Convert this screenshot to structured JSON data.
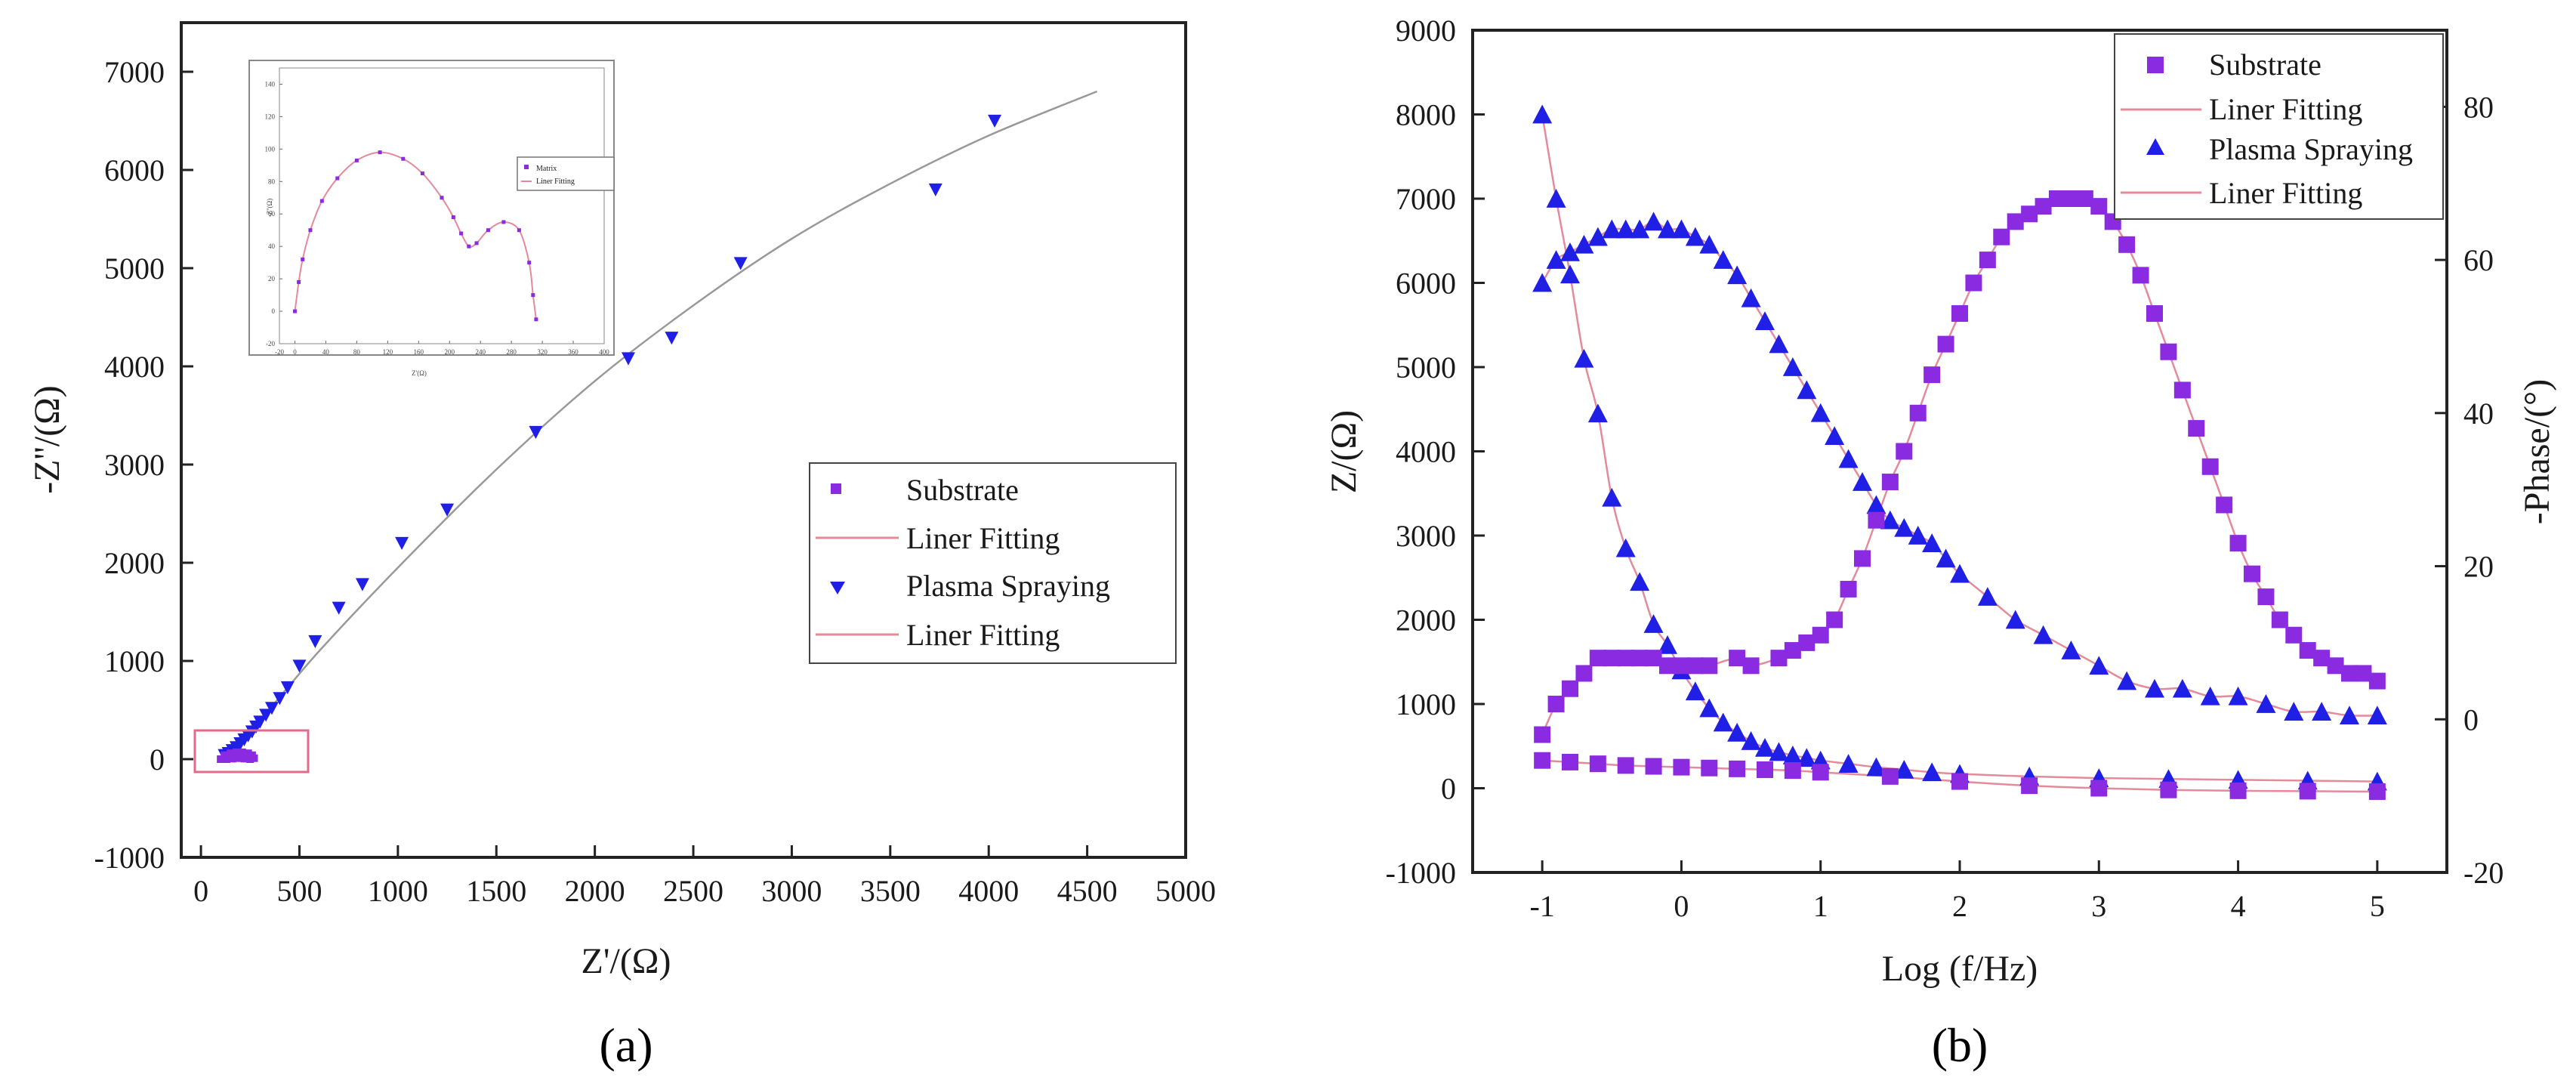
{
  "chart_data": [
    {
      "id": "a",
      "type": "scatter",
      "panel_label": "(a)",
      "xlabel": "Z'/(Ω)",
      "ylabel": "-Z''/(Ω)",
      "xlim": [
        -100,
        5000
      ],
      "ylim": [
        -1000,
        7500
      ],
      "xticks": [
        0,
        500,
        1000,
        1500,
        2000,
        2500,
        3000,
        3500,
        4000,
        4500,
        5000
      ],
      "yticks": [
        -1000,
        0,
        1000,
        2000,
        3000,
        4000,
        5000,
        6000,
        7000
      ],
      "legend": [
        "Substrate",
        "Liner Fitting",
        "Plasma Spraying",
        "Liner Fitting"
      ],
      "series": [
        {
          "name": "Plasma Spraying",
          "marker": "triangle-down",
          "color": "#1f1fe6",
          "x": [
            120,
            140,
            160,
            180,
            200,
            220,
            240,
            260,
            280,
            300,
            330,
            360,
            400,
            440,
            500,
            580,
            700,
            820,
            1020,
            1250,
            1700,
            2170,
            2390,
            2740,
            3730,
            4030
          ],
          "y": [
            40,
            60,
            90,
            120,
            160,
            200,
            240,
            280,
            330,
            380,
            450,
            520,
            620,
            730,
            950,
            1200,
            1540,
            1780,
            2200,
            2540,
            3330,
            4080,
            4290,
            5050,
            5800,
            6500
          ]
        },
        {
          "name": "Substrate",
          "marker": "square",
          "color": "#8a2be2",
          "x": [
            100,
            120,
            150,
            180,
            210,
            240,
            260,
            270,
            250,
            220,
            190,
            160,
            130
          ],
          "y": [
            0,
            40,
            60,
            70,
            70,
            60,
            40,
            10,
            0,
            5,
            10,
            5,
            0
          ]
        },
        {
          "name": "Liner Fitting",
          "type": "line",
          "color": "#999999",
          "x": [
            100,
            300,
            600,
            1000,
            1500,
            2000,
            2500,
            3000,
            3500,
            4000,
            4550
          ],
          "y": [
            0,
            400,
            1100,
            1950,
            2950,
            3850,
            4620,
            5300,
            5860,
            6350,
            6800
          ]
        }
      ],
      "inset": {
        "xlabel": "Z'(Ω)",
        "ylabel": "-Z''(Ω)",
        "xlim": [
          -20,
          400
        ],
        "ylim": [
          -20,
          150
        ],
        "xticks": [
          -20,
          0,
          40,
          80,
          120,
          160,
          200,
          240,
          280,
          320,
          360,
          400
        ],
        "yticks": [
          -20,
          0,
          20,
          40,
          60,
          80,
          100,
          120,
          140
        ],
        "legend": [
          "Matrix",
          "Liner Fitting"
        ],
        "x": [
          0,
          5,
          10,
          20,
          35,
          55,
          80,
          110,
          140,
          165,
          190,
          205,
          215,
          225,
          235,
          250,
          270,
          290,
          303,
          308,
          312
        ],
        "y": [
          0,
          18,
          32,
          50,
          68,
          82,
          93,
          98,
          94,
          85,
          70,
          58,
          48,
          40,
          42,
          50,
          55,
          50,
          30,
          10,
          -5
        ]
      }
    },
    {
      "id": "b",
      "type": "scatter",
      "panel_label": "(b)",
      "xlabel": "Log (f/Hz)",
      "ylabel": "Z/(Ω)",
      "y2label": "-Phase/(°)",
      "xlim": [
        -1.5,
        5.5
      ],
      "ylim": [
        -1000,
        9000
      ],
      "y2lim": [
        -20,
        90
      ],
      "xticks": [
        -1,
        0,
        1,
        2,
        3,
        4,
        5
      ],
      "yticks": [
        -1000,
        0,
        1000,
        2000,
        3000,
        4000,
        5000,
        6000,
        7000,
        8000,
        9000
      ],
      "y2ticks": [
        -20,
        0,
        20,
        40,
        60,
        80
      ],
      "legend": [
        "Substrate",
        "Liner Fitting",
        "Plasma Spraying",
        "Liner Fitting"
      ],
      "series": [
        {
          "name": "Plasma Spraying |Z|",
          "axis": "left",
          "marker": "triangle-up",
          "color": "#1f1fe6",
          "x": [
            -1.0,
            -0.9,
            -0.8,
            -0.7,
            -0.6,
            -0.5,
            -0.4,
            -0.3,
            -0.2,
            -0.1,
            0.0,
            0.1,
            0.2,
            0.3,
            0.4,
            0.5,
            0.6,
            0.7,
            0.8,
            0.9,
            1.0,
            1.2,
            1.4,
            1.6,
            1.8,
            2.0,
            2.5,
            3.0,
            3.5,
            4.0,
            4.5,
            5.0
          ],
          "y": [
            8000,
            7000,
            6100,
            5100,
            4450,
            3450,
            2850,
            2450,
            1950,
            1700,
            1400,
            1150,
            950,
            780,
            660,
            560,
            480,
            430,
            390,
            360,
            330,
            290,
            250,
            220,
            190,
            170,
            140,
            120,
            110,
            100,
            90,
            80
          ]
        },
        {
          "name": "Plasma Spraying Phase",
          "axis": "right",
          "marker": "triangle-up",
          "color": "#1f1fe6",
          "x": [
            -1.0,
            -0.9,
            -0.8,
            -0.7,
            -0.6,
            -0.5,
            -0.4,
            -0.3,
            -0.2,
            -0.1,
            0.0,
            0.1,
            0.2,
            0.3,
            0.4,
            0.5,
            0.6,
            0.7,
            0.8,
            0.9,
            1.0,
            1.1,
            1.2,
            1.3,
            1.4,
            1.5,
            1.6,
            1.7,
            1.8,
            1.9,
            2.0,
            2.2,
            2.4,
            2.6,
            2.8,
            3.0,
            3.2,
            3.4,
            3.6,
            3.8,
            4.0,
            4.2,
            4.4,
            4.6,
            4.8,
            5.0
          ],
          "y": [
            57,
            60,
            61,
            62,
            63,
            64,
            64,
            64,
            65,
            64,
            64,
            63,
            62,
            60,
            58,
            55,
            52,
            49,
            46,
            43,
            40,
            37,
            34,
            31,
            28,
            26,
            25,
            24,
            23,
            21,
            19,
            16,
            13,
            11,
            9,
            7,
            5,
            4,
            4,
            3,
            3,
            2,
            1,
            1,
            0.5,
            0.5
          ]
        },
        {
          "name": "Substrate |Z|",
          "axis": "left",
          "marker": "square",
          "color": "#8a2be2",
          "x": [
            -1.0,
            -0.8,
            -0.6,
            -0.4,
            -0.2,
            0.0,
            0.2,
            0.4,
            0.6,
            0.8,
            1.0,
            1.5,
            2.0,
            2.5,
            3.0,
            3.5,
            4.0,
            4.5,
            5.0
          ],
          "y": [
            330,
            310,
            290,
            270,
            260,
            250,
            240,
            230,
            220,
            210,
            190,
            140,
            80,
            30,
            0,
            -20,
            -30,
            -35,
            -40
          ]
        },
        {
          "name": "Substrate Phase",
          "axis": "right",
          "marker": "square",
          "color": "#8a2be2",
          "x": [
            -1.0,
            -0.9,
            -0.8,
            -0.7,
            -0.6,
            -0.5,
            -0.4,
            -0.3,
            -0.2,
            -0.1,
            0.0,
            0.1,
            0.2,
            0.4,
            0.5,
            0.7,
            0.8,
            0.9,
            1.0,
            1.1,
            1.2,
            1.3,
            1.4,
            1.5,
            1.6,
            1.7,
            1.8,
            1.9,
            2.0,
            2.1,
            2.2,
            2.3,
            2.4,
            2.5,
            2.6,
            2.7,
            2.8,
            2.9,
            3.0,
            3.1,
            3.2,
            3.3,
            3.4,
            3.5,
            3.6,
            3.7,
            3.8,
            3.9,
            4.0,
            4.1,
            4.2,
            4.3,
            4.4,
            4.5,
            4.6,
            4.7,
            4.8,
            4.9,
            5.0
          ],
          "y": [
            -2,
            2,
            4,
            6,
            8,
            8,
            8,
            8,
            8,
            7,
            7,
            7,
            7,
            8,
            7,
            8,
            9,
            10,
            11,
            13,
            17,
            21,
            26,
            31,
            35,
            40,
            45,
            49,
            53,
            57,
            60,
            63,
            65,
            66,
            67,
            68,
            68,
            68,
            67,
            65,
            62,
            58,
            53,
            48,
            43,
            38,
            33,
            28,
            23,
            19,
            16,
            13,
            11,
            9,
            8,
            7,
            6,
            6,
            5
          ]
        }
      ]
    }
  ]
}
